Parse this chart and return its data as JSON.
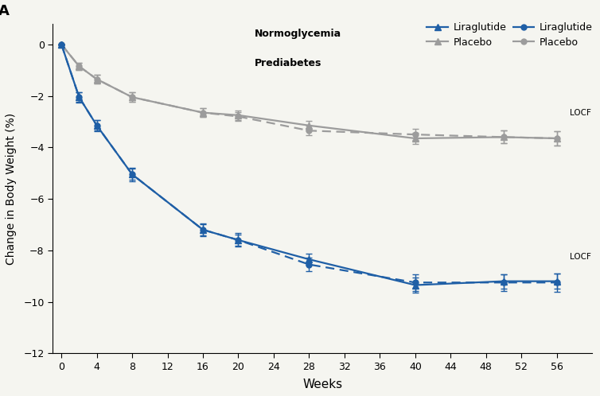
{
  "xlabel": "Weeks",
  "ylabel": "Change in Body Weight (%)",
  "xlim": [
    -1,
    60
  ],
  "ylim": [
    -12,
    0.8
  ],
  "xticks": [
    0,
    4,
    8,
    12,
    16,
    20,
    24,
    28,
    32,
    36,
    40,
    44,
    48,
    52,
    56
  ],
  "yticks": [
    0,
    -2,
    -4,
    -6,
    -8,
    -10,
    -12
  ],
  "normo_lira_x": [
    0,
    2,
    4,
    8,
    16,
    20,
    28,
    40,
    50,
    56
  ],
  "normo_lira_y": [
    0.0,
    -2.05,
    -3.15,
    -5.05,
    -7.2,
    -7.6,
    -8.35,
    -9.35,
    -9.2,
    -9.2
  ],
  "normo_lira_yerr": [
    0.0,
    0.18,
    0.2,
    0.22,
    0.22,
    0.22,
    0.22,
    0.28,
    0.28,
    0.3
  ],
  "normo_placebo_x": [
    0,
    2,
    4,
    8,
    16,
    20,
    28,
    40,
    50,
    56
  ],
  "normo_placebo_y": [
    0.0,
    -0.85,
    -1.35,
    -2.05,
    -2.65,
    -2.75,
    -3.15,
    -3.65,
    -3.6,
    -3.65
  ],
  "normo_placebo_yerr": [
    0.0,
    0.15,
    0.18,
    0.18,
    0.18,
    0.18,
    0.18,
    0.22,
    0.25,
    0.28
  ],
  "predia_lira_x": [
    0,
    2,
    4,
    8,
    16,
    20,
    28,
    40,
    50,
    56
  ],
  "predia_lira_y": [
    0.0,
    -2.05,
    -3.15,
    -5.05,
    -7.2,
    -7.6,
    -8.55,
    -9.25,
    -9.25,
    -9.25
  ],
  "predia_lira_yerr": [
    0.0,
    0.2,
    0.22,
    0.26,
    0.26,
    0.26,
    0.26,
    0.32,
    0.32,
    0.35
  ],
  "predia_placebo_x": [
    0,
    2,
    4,
    8,
    16,
    20,
    28,
    40,
    50,
    56
  ],
  "predia_placebo_y": [
    0.0,
    -0.85,
    -1.35,
    -2.05,
    -2.65,
    -2.8,
    -3.35,
    -3.5,
    -3.6,
    -3.65
  ],
  "predia_placebo_yerr": [
    0.0,
    0.15,
    0.18,
    0.18,
    0.18,
    0.18,
    0.18,
    0.22,
    0.25,
    0.28
  ],
  "blue_color": "#1f5fa6",
  "gray_color": "#9c9c9c",
  "background_color": "#f5f5f0"
}
